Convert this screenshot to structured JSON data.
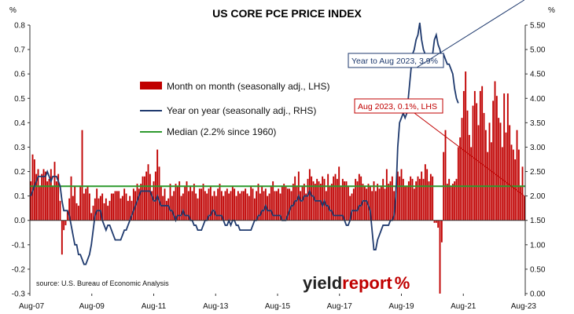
{
  "chart_data": {
    "type": "bar+line",
    "title": "US CORE PCE PRICE INDEX",
    "left_unit": "%",
    "right_unit": "%",
    "left_axis": {
      "min": -0.3,
      "max": 0.8,
      "step": 0.1,
      "tick_labels": [
        "-0.3",
        "-0.2",
        "-0.1",
        "0.0",
        "0.1",
        "0.2",
        "0.3",
        "0.4",
        "0.5",
        "0.6",
        "0.7",
        "0.8"
      ]
    },
    "right_axis": {
      "min": 0.0,
      "max": 5.5,
      "step": 0.5,
      "tick_labels": [
        "0.00",
        "0.50",
        "1.00",
        "1.50",
        "2.00",
        "2.50",
        "3.00",
        "3.50",
        "4.00",
        "4.50",
        "5.00",
        "5.50"
      ]
    },
    "x_tick_labels": [
      "Aug-07",
      "Aug-09",
      "Aug-11",
      "Aug-13",
      "Aug-15",
      "Aug-17",
      "Aug-19",
      "Aug-21",
      "Aug-23"
    ],
    "x_range": [
      "Aug-07",
      "Aug-23"
    ],
    "legend": [
      {
        "label": "Month on month (seasonally adj., LHS)",
        "color": "#c00000",
        "kind": "bar"
      },
      {
        "label": "Year on year (seasonally adj., RHS)",
        "color": "#1f3a6e",
        "kind": "line"
      },
      {
        "label": "Median (2.2% since 1960)",
        "color": "#2e9a2e",
        "kind": "line"
      }
    ],
    "legend_position": "upper-left-center",
    "grid": false,
    "median_rhs": 2.2,
    "series": [
      {
        "name": "Month on month (seasonally adj., LHS)",
        "axis": "left",
        "color": "#c00000",
        "interval": "monthly",
        "start": "Aug-07",
        "values": [
          0.16,
          0.27,
          0.25,
          0.19,
          0.21,
          0.14,
          0.19,
          0.21,
          0.2,
          0.16,
          0.17,
          0.21,
          0.14,
          0.24,
          0.16,
          0.19,
          0.08,
          -0.14,
          -0.04,
          -0.02,
          0.04,
          0.09,
          0.18,
          0.1,
          0.14,
          0.07,
          0.06,
          0.14,
          0.37,
          0.11,
          0.13,
          0.14,
          0.11,
          0.03,
          0.06,
          0.09,
          0.13,
          0.09,
          0.1,
          0.11,
          0.07,
          0.09,
          0.06,
          0.08,
          0.11,
          0.11,
          0.12,
          0.12,
          0.12,
          0.09,
          0.1,
          0.13,
          0.11,
          0.08,
          0.1,
          0.08,
          0.13,
          0.12,
          0.15,
          0.13,
          0.15,
          0.18,
          0.18,
          0.2,
          0.23,
          0.19,
          0.12,
          0.16,
          0.2,
          0.29,
          0.22,
          0.14,
          0.1,
          0.13,
          0.08,
          0.09,
          0.15,
          0.1,
          0.12,
          0.15,
          0.14,
          0.16,
          0.1,
          0.11,
          0.14,
          0.16,
          0.12,
          0.14,
          0.12,
          0.15,
          0.11,
          0.09,
          0.13,
          0.13,
          0.15,
          0.12,
          0.11,
          0.13,
          0.14,
          0.1,
          0.12,
          0.1,
          0.13,
          0.15,
          0.12,
          0.1,
          0.12,
          0.13,
          0.11,
          0.12,
          0.14,
          0.13,
          0.1,
          0.12,
          0.11,
          0.12,
          0.12,
          0.13,
          0.11,
          0.1,
          0.14,
          0.13,
          0.09,
          0.12,
          0.15,
          0.11,
          0.14,
          0.12,
          0.13,
          0.1,
          0.11,
          0.14,
          0.16,
          0.12,
          0.12,
          0.13,
          0.11,
          0.14,
          0.15,
          0.14,
          0.13,
          0.13,
          0.12,
          0.15,
          0.18,
          0.14,
          0.2,
          0.12,
          0.14,
          0.15,
          0.11,
          0.17,
          0.21,
          0.18,
          0.16,
          0.15,
          0.17,
          0.16,
          0.15,
          0.18,
          0.17,
          0.12,
          0.19,
          0.14,
          0.15,
          0.18,
          0.19,
          0.17,
          0.22,
          0.14,
          0.17,
          0.16,
          0.16,
          0.14,
          0.1,
          0.11,
          0.13,
          0.17,
          0.16,
          0.19,
          0.18,
          0.15,
          0.14,
          0.13,
          0.15,
          0.14,
          0.12,
          0.16,
          0.12,
          0.15,
          0.13,
          0.14,
          0.17,
          0.13,
          0.21,
          0.15,
          0.16,
          0.18,
          0.12,
          0.14,
          0.2,
          0.18,
          0.21,
          0.17,
          0.14,
          0.14,
          0.16,
          0.18,
          0.17,
          0.13,
          0.16,
          0.18,
          0.17,
          0.2,
          0.17,
          0.23,
          0.21,
          0.16,
          0.19,
          0.18,
          -0.01,
          -0.01,
          -0.03,
          -0.3,
          -0.09,
          0.28,
          0.37,
          0.15,
          0.17,
          0.14,
          0.15,
          0.16,
          0.17,
          0.3,
          0.34,
          0.42,
          0.53,
          0.61,
          0.45,
          0.35,
          0.3,
          0.47,
          0.53,
          0.48,
          0.39,
          0.53,
          0.55,
          0.44,
          0.37,
          0.28,
          0.4,
          0.32,
          0.49,
          0.57,
          0.51,
          0.42,
          0.4,
          0.3,
          0.52,
          0.36,
          0.52,
          0.39,
          0.31,
          0.29,
          0.25,
          0.37,
          0.29,
          0.14,
          0.22,
          0.1
        ]
      },
      {
        "name": "Year on year (seasonally adj., RHS)",
        "axis": "right",
        "color": "#1f3a6e",
        "interval": "monthly",
        "start": "Aug-07",
        "values": [
          2.0,
          2.1,
          2.2,
          2.3,
          2.4,
          2.4,
          2.4,
          2.4,
          2.4,
          2.5,
          2.4,
          2.3,
          2.4,
          2.4,
          2.4,
          2.3,
          2.2,
          1.9,
          1.7,
          1.7,
          1.7,
          1.6,
          1.4,
          1.2,
          1.0,
          1.0,
          0.8,
          0.8,
          0.7,
          0.6,
          0.6,
          0.7,
          0.8,
          1.0,
          1.3,
          1.6,
          1.7,
          1.7,
          1.7,
          1.5,
          1.4,
          1.3,
          1.4,
          1.4,
          1.3,
          1.2,
          1.1,
          1.1,
          1.1,
          1.1,
          1.2,
          1.3,
          1.3,
          1.4,
          1.5,
          1.6,
          1.7,
          1.8,
          1.9,
          2.0,
          2.1,
          2.1,
          2.1,
          2.1,
          2.1,
          2.1,
          2.0,
          1.9,
          1.9,
          2.0,
          1.9,
          1.8,
          1.8,
          1.8,
          1.8,
          1.8,
          1.7,
          1.7,
          1.6,
          1.5,
          1.6,
          1.6,
          1.6,
          1.7,
          1.6,
          1.6,
          1.6,
          1.5,
          1.5,
          1.4,
          1.4,
          1.3,
          1.3,
          1.3,
          1.4,
          1.5,
          1.5,
          1.6,
          1.6,
          1.7,
          1.7,
          1.6,
          1.6,
          1.6,
          1.6,
          1.5,
          1.4,
          1.4,
          1.5,
          1.4,
          1.5,
          1.5,
          1.4,
          1.4,
          1.3,
          1.3,
          1.3,
          1.3,
          1.3,
          1.3,
          1.3,
          1.4,
          1.5,
          1.5,
          1.6,
          1.6,
          1.7,
          1.7,
          1.8,
          1.7,
          1.7,
          1.7,
          1.6,
          1.6,
          1.6,
          1.6,
          1.6,
          1.5,
          1.5,
          1.5,
          1.6,
          1.7,
          1.8,
          1.8,
          1.9,
          1.9,
          2.0,
          1.9,
          1.9,
          2.0,
          2.0,
          2.0,
          2.1,
          2.0,
          2.0,
          1.9,
          1.9,
          1.9,
          1.9,
          1.8,
          1.9,
          1.8,
          1.8,
          1.7,
          1.7,
          1.6,
          1.6,
          1.6,
          1.6,
          1.6,
          1.6,
          1.5,
          1.4,
          1.4,
          1.5,
          1.7,
          1.7,
          1.7,
          1.7,
          1.8,
          1.8,
          1.9,
          1.9,
          1.9,
          1.8,
          1.7,
          1.3,
          0.9,
          0.9,
          1.1,
          1.2,
          1.3,
          1.4,
          1.4,
          1.4,
          1.4,
          1.5,
          1.5,
          1.6,
          2.0,
          3.0,
          3.5,
          3.6,
          3.7,
          3.6,
          3.7,
          4.1,
          4.5,
          4.9,
          5.0,
          5.2,
          5.3,
          5.6,
          5.2,
          5.0,
          4.9,
          4.7,
          4.7,
          4.8,
          4.9,
          5.2,
          5.3,
          5.1,
          5.0,
          4.8,
          4.9,
          4.8,
          4.7,
          4.7,
          4.6,
          4.5,
          4.2,
          4.0,
          3.9
        ]
      }
    ],
    "annotations": [
      {
        "text": "Year to Aug 2023, 3.9%",
        "color": "#1f3a6e"
      },
      {
        "text": "Aug 2023, 0.1%, LHS",
        "color": "#c00000"
      }
    ],
    "source": "source: U.S. Bureau of Economic Analysis",
    "brand": {
      "text_dark": "yield",
      "text_accent": "report",
      "symbol": "%",
      "accent_color": "#c00000",
      "dark_color": "#222222"
    }
  }
}
